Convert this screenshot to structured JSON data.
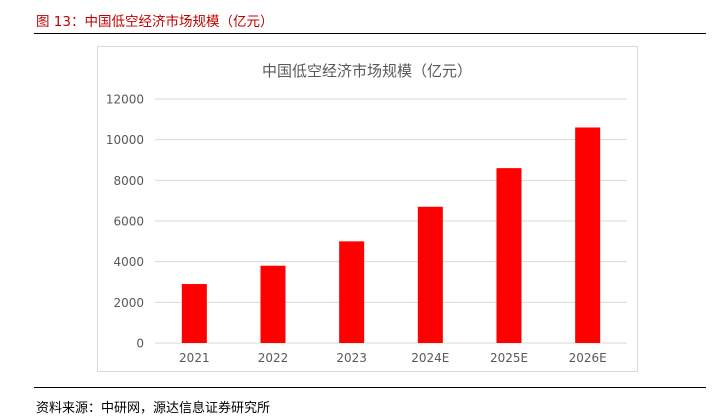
{
  "figure": {
    "title": "图 13：中国低空经济市场规模（亿元）",
    "source": "资料来源：中研网，源达信息证券研究所"
  },
  "colors": {
    "bar": "#ff0000",
    "grid": "#d9d9d9",
    "axis_text": "#595959",
    "title_red": "#c00000"
  },
  "chart_data": {
    "type": "bar",
    "title": "中国低空经济市场规模（亿元）",
    "categories": [
      "2021",
      "2022",
      "2023",
      "2024E",
      "2025E",
      "2026E"
    ],
    "values": [
      2900,
      3800,
      5000,
      6700,
      8600,
      10600
    ],
    "yticks": [
      "0",
      "2000",
      "4000",
      "6000",
      "8000",
      "10000",
      "12000"
    ],
    "ylim": [
      0,
      12000
    ],
    "grid": true,
    "xlabel": "",
    "ylabel": ""
  }
}
